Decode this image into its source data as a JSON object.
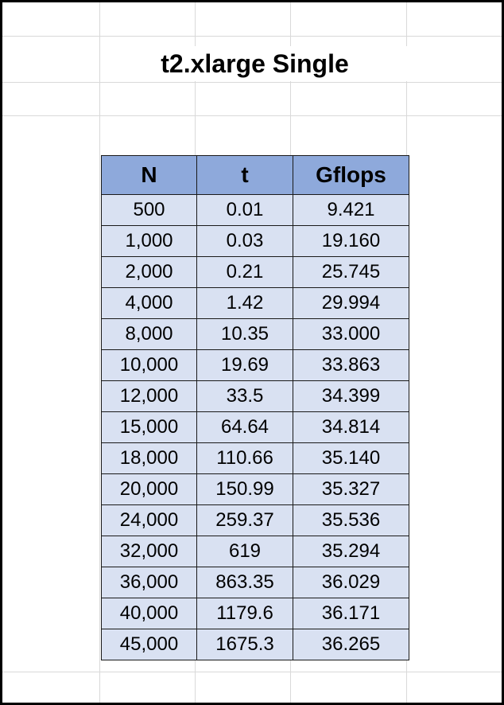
{
  "sheet": {
    "title": "t2.xlarge Single",
    "header_color": "#8ea9db",
    "cell_color": "#d9e1f2",
    "columns": [
      "N",
      "t",
      "Gflops"
    ],
    "rows": [
      [
        "500",
        "0.01",
        "9.421"
      ],
      [
        "1,000",
        "0.03",
        "19.160"
      ],
      [
        "2,000",
        "0.21",
        "25.745"
      ],
      [
        "4,000",
        "1.42",
        "29.994"
      ],
      [
        "8,000",
        "10.35",
        "33.000"
      ],
      [
        "10,000",
        "19.69",
        "33.863"
      ],
      [
        "12,000",
        "33.5",
        "34.399"
      ],
      [
        "15,000",
        "64.64",
        "34.814"
      ],
      [
        "18,000",
        "110.66",
        "35.140"
      ],
      [
        "20,000",
        "150.99",
        "35.327"
      ],
      [
        "24,000",
        "259.37",
        "35.536"
      ],
      [
        "32,000",
        "619",
        "35.294"
      ],
      [
        "36,000",
        "863.35",
        "36.029"
      ],
      [
        "40,000",
        "1179.6",
        "36.171"
      ],
      [
        "45,000",
        "1675.3",
        "36.265"
      ]
    ]
  }
}
